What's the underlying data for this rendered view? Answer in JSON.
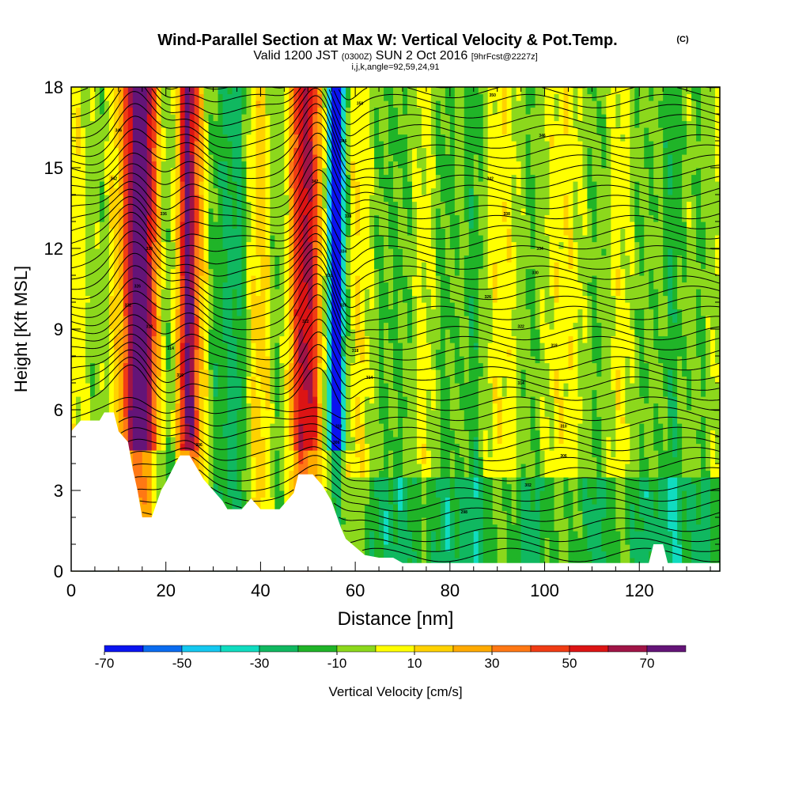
{
  "chart_data": {
    "type": "heatmap",
    "title": "Wind-Parallel Section at Max W: Vertical Velocity & Pot.Temp.",
    "title_mark": "(C)",
    "subtitle": {
      "valid": "Valid 1200 JST",
      "zulu": "(0300Z)",
      "date": "SUN 2 Oct 2016",
      "forecast": "[9hrFcst@2227z]"
    },
    "indices": "i,j,k,angle=92,59,24,91",
    "xlabel": "Distance [nm]",
    "ylabel": "Height [Kft MSL]",
    "xlim": [
      0,
      137
    ],
    "ylim": [
      0,
      18
    ],
    "x_ticks": [
      "0",
      "20",
      "40",
      "60",
      "80",
      "100",
      "120"
    ],
    "y_ticks": [
      "0",
      "3",
      "6",
      "9",
      "12",
      "15",
      "18"
    ],
    "colorbar": {
      "label": "Vertical Velocity [cm/s]",
      "bounds": [
        -70,
        -60,
        -50,
        -40,
        -30,
        -20,
        -10,
        0,
        10,
        20,
        30,
        40,
        50,
        60,
        70,
        80
      ],
      "colors": [
        "#0a14f0",
        "#0a6cf0",
        "#14c8f0",
        "#10dcc0",
        "#10b860",
        "#20b428",
        "#8cd81c",
        "#ffff00",
        "#ffd200",
        "#ffaa00",
        "#ff7814",
        "#f03c14",
        "#dc1414",
        "#a01446",
        "#641478"
      ],
      "tick_labels": [
        "-70",
        "-50",
        "-30",
        "-10",
        "10",
        "30",
        "50",
        "70"
      ]
    },
    "bands": [
      {
        "x": 10,
        "w": 7,
        "value": 48
      },
      {
        "x": 14,
        "w": 4,
        "value": 72
      },
      {
        "x": 11,
        "w": 3,
        "value": -55
      },
      {
        "x": 4,
        "w": 2.5,
        "value": -20
      },
      {
        "x": 7,
        "w": 2.5,
        "value": -35
      },
      {
        "x": 20,
        "w": 3,
        "value": -20
      },
      {
        "x": 24.5,
        "w": 2,
        "value": 62
      },
      {
        "x": 27,
        "w": 3,
        "value": 22
      },
      {
        "x": 30,
        "w": 3,
        "value": -20
      },
      {
        "x": 35,
        "w": 3,
        "value": -25
      },
      {
        "x": 40,
        "w": 3,
        "value": 18
      },
      {
        "x": 44,
        "w": 3,
        "value": -20
      },
      {
        "x": 48,
        "w": 3,
        "value": 22
      },
      {
        "x": 51,
        "w": 4,
        "value": 55
      },
      {
        "x": 55,
        "w": 3.5,
        "value": -48
      },
      {
        "x": 56,
        "w": 1.5,
        "value": -62
      },
      {
        "x": 60,
        "w": 5,
        "value": 12
      },
      {
        "x": 65,
        "w": 3,
        "value": -15
      },
      {
        "x": 70,
        "w": 3,
        "value": -12
      },
      {
        "x": 75,
        "w": 2,
        "value": 5
      },
      {
        "x": 79,
        "w": 3,
        "value": -15
      },
      {
        "x": 85,
        "w": 2.5,
        "value": -18
      },
      {
        "x": 91,
        "w": 3,
        "value": 5
      },
      {
        "x": 97,
        "w": 3,
        "value": -12
      },
      {
        "x": 104,
        "w": 3,
        "value": 5
      },
      {
        "x": 111,
        "w": 3,
        "value": -12
      },
      {
        "x": 116,
        "w": 2,
        "value": 5
      },
      {
        "x": 121,
        "w": 3,
        "value": -12
      },
      {
        "x": 127,
        "w": 2.5,
        "value": -20
      },
      {
        "x": 133,
        "w": 2.5,
        "value": -12
      }
    ],
    "terrain": [
      [
        0,
        5.2
      ],
      [
        2,
        5.6
      ],
      [
        6,
        5.6
      ],
      [
        7,
        5.9
      ],
      [
        9,
        5.9
      ],
      [
        10,
        5.2
      ],
      [
        12,
        4.8
      ],
      [
        13,
        3.8
      ],
      [
        14,
        3.0
      ],
      [
        15,
        2.0
      ],
      [
        17,
        2.0
      ],
      [
        18,
        2.5
      ],
      [
        19,
        3.0
      ],
      [
        20,
        3.3
      ],
      [
        22,
        4.0
      ],
      [
        23,
        4.3
      ],
      [
        25,
        4.3
      ],
      [
        26,
        4.0
      ],
      [
        28,
        3.4
      ],
      [
        30,
        3.0
      ],
      [
        32,
        2.6
      ],
      [
        33,
        2.3
      ],
      [
        36,
        2.3
      ],
      [
        38,
        2.7
      ],
      [
        40,
        2.3
      ],
      [
        44,
        2.3
      ],
      [
        47,
        2.9
      ],
      [
        48,
        3.6
      ],
      [
        51,
        3.6
      ],
      [
        53,
        3.2
      ],
      [
        55,
        2.6
      ],
      [
        57,
        1.6
      ],
      [
        58,
        1.2
      ],
      [
        60,
        0.9
      ],
      [
        62,
        0.6
      ],
      [
        65,
        0.5
      ],
      [
        68,
        0.5
      ],
      [
        70,
        0.3
      ],
      [
        122,
        0.3
      ],
      [
        123,
        1.0
      ],
      [
        125,
        1.0
      ],
      [
        126,
        0.3
      ],
      [
        137,
        0.3
      ]
    ],
    "isentropes": {
      "count": 48,
      "labels": [
        {
          "x": 10,
          "y": 16.4,
          "text": "346"
        },
        {
          "x": 9,
          "y": 14.6,
          "text": "342"
        },
        {
          "x": 19.5,
          "y": 13.3,
          "text": "336"
        },
        {
          "x": 16.5,
          "y": 12.0,
          "text": "330"
        },
        {
          "x": 14,
          "y": 10.6,
          "text": "326"
        },
        {
          "x": 12,
          "y": 9.9,
          "text": "322"
        },
        {
          "x": 16.5,
          "y": 9.1,
          "text": "318"
        },
        {
          "x": 21,
          "y": 8.3,
          "text": "314"
        },
        {
          "x": 23,
          "y": 7.3,
          "text": "310"
        },
        {
          "x": 27,
          "y": 4.7,
          "text": "306"
        },
        {
          "x": 61,
          "y": 17.4,
          "text": "350"
        },
        {
          "x": 57.5,
          "y": 16.0,
          "text": "346"
        },
        {
          "x": 51.5,
          "y": 14.5,
          "text": "342"
        },
        {
          "x": 58.5,
          "y": 13.2,
          "text": "338"
        },
        {
          "x": 57.5,
          "y": 11.9,
          "text": "334"
        },
        {
          "x": 54.5,
          "y": 11.0,
          "text": "330"
        },
        {
          "x": 57.5,
          "y": 9.9,
          "text": "326"
        },
        {
          "x": 49.5,
          "y": 9.3,
          "text": "322"
        },
        {
          "x": 60,
          "y": 8.2,
          "text": "318"
        },
        {
          "x": 63,
          "y": 7.2,
          "text": "314"
        },
        {
          "x": 56.5,
          "y": 5.4,
          "text": "310"
        },
        {
          "x": 56,
          "y": 4.8,
          "text": "306"
        },
        {
          "x": 89,
          "y": 17.7,
          "text": "350"
        },
        {
          "x": 99.5,
          "y": 16.2,
          "text": "346"
        },
        {
          "x": 88.5,
          "y": 14.6,
          "text": "342"
        },
        {
          "x": 92,
          "y": 13.3,
          "text": "338"
        },
        {
          "x": 99,
          "y": 12.0,
          "text": "334"
        },
        {
          "x": 98,
          "y": 11.1,
          "text": "330"
        },
        {
          "x": 88,
          "y": 10.2,
          "text": "326"
        },
        {
          "x": 95,
          "y": 9.1,
          "text": "322"
        },
        {
          "x": 102,
          "y": 8.4,
          "text": "318"
        },
        {
          "x": 95,
          "y": 7.0,
          "text": "314"
        },
        {
          "x": 104,
          "y": 5.4,
          "text": "310"
        },
        {
          "x": 104,
          "y": 4.3,
          "text": "306"
        },
        {
          "x": 96.5,
          "y": 3.2,
          "text": "302"
        },
        {
          "x": 83,
          "y": 2.2,
          "text": "298"
        }
      ]
    }
  }
}
